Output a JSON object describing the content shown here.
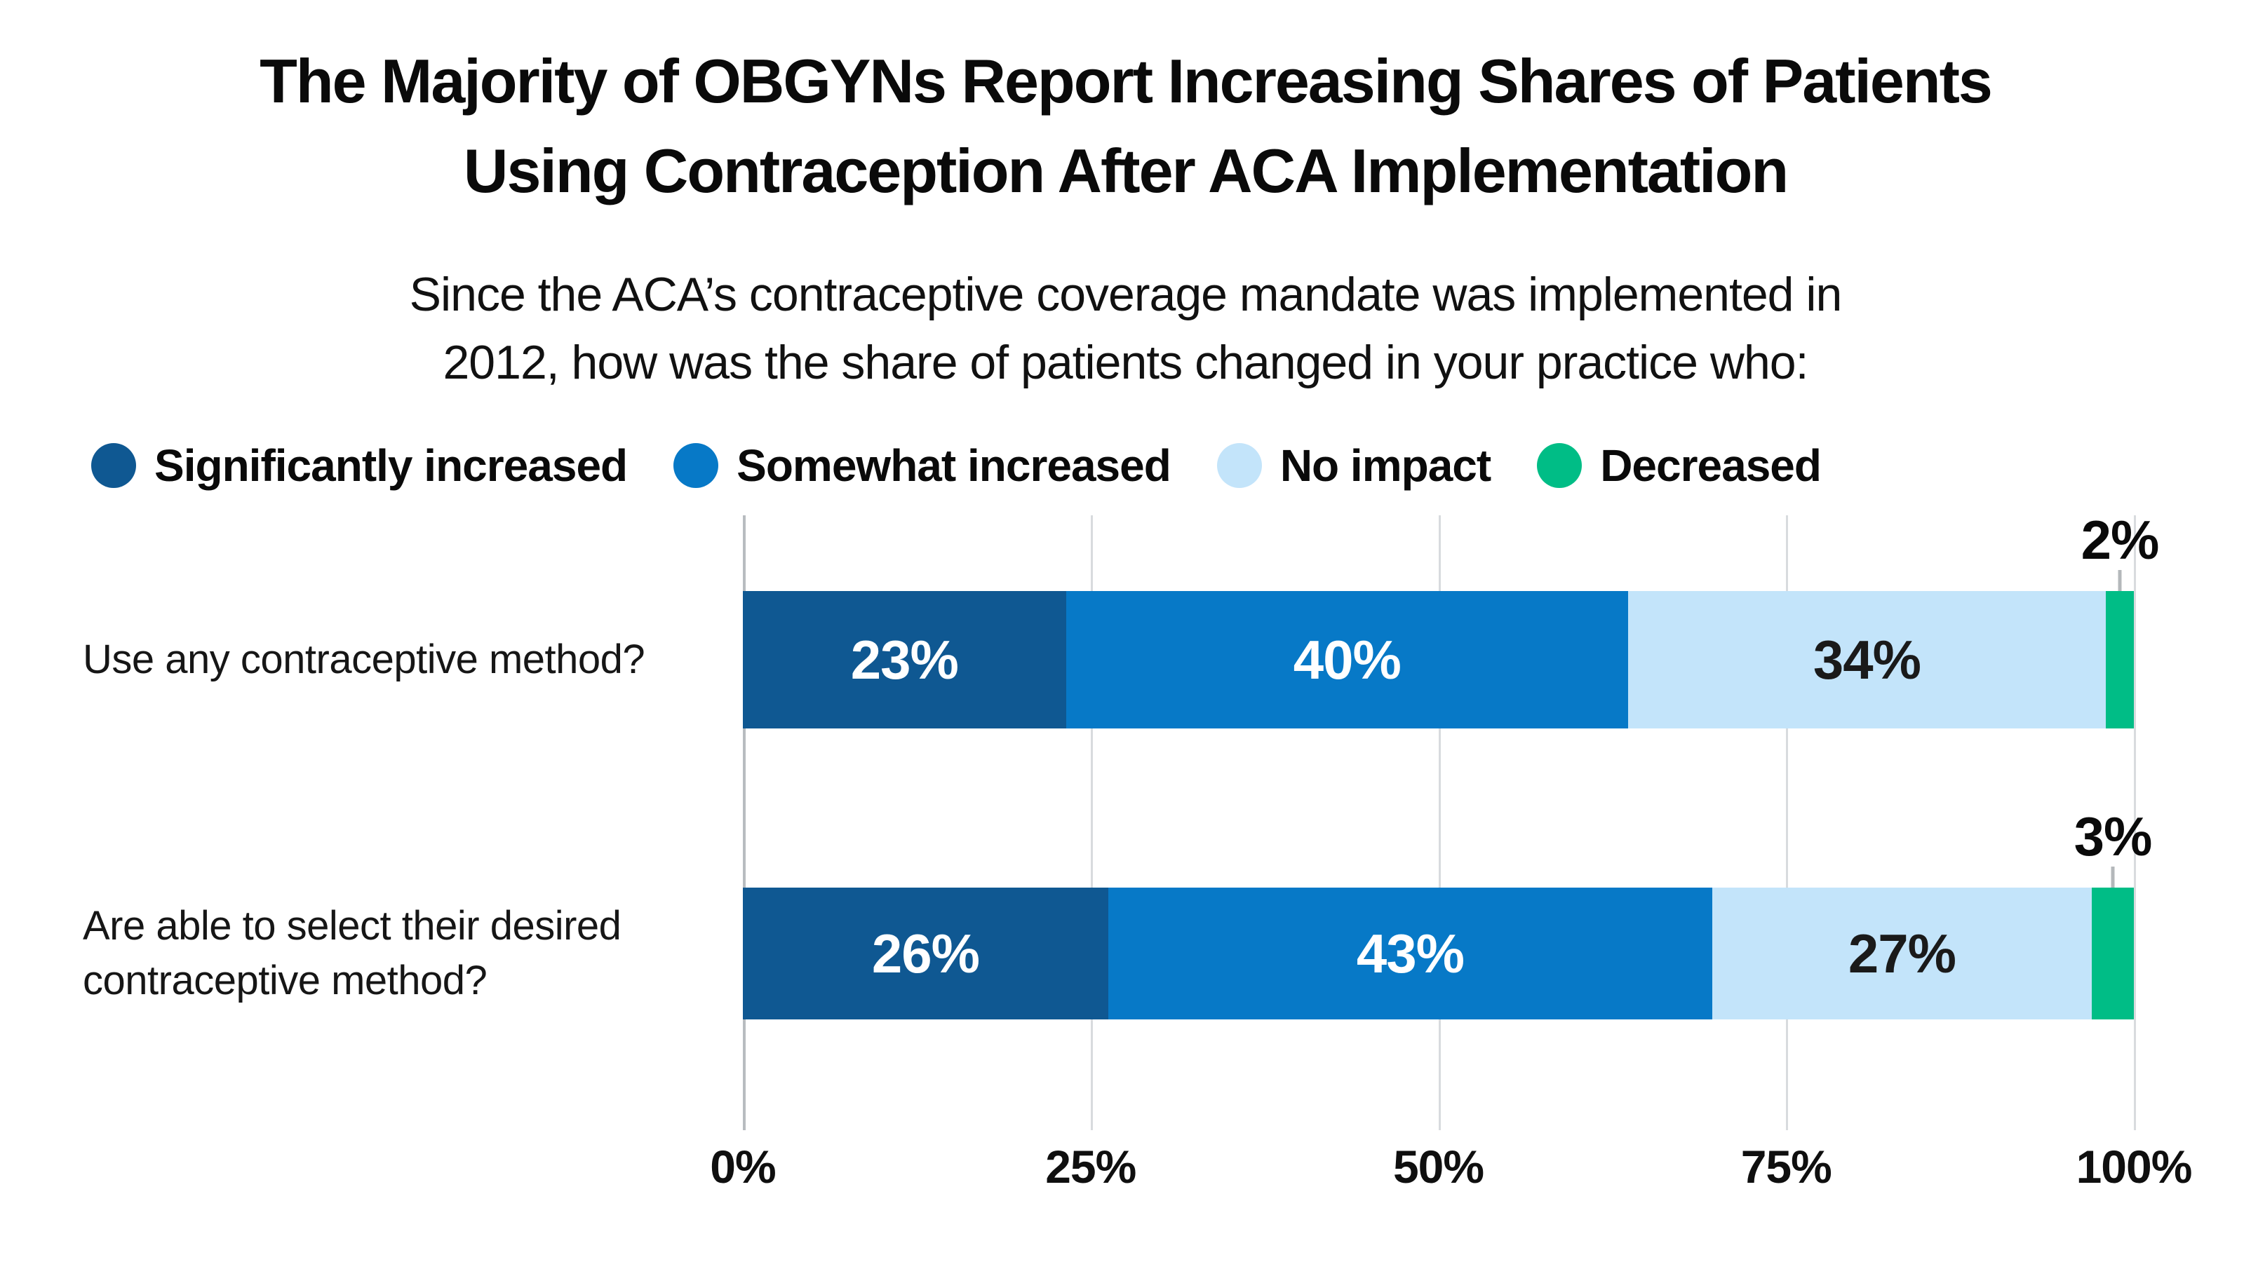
{
  "title": {
    "line1": "The Majority of OBGYNs Report Increasing Shares of Patients",
    "line2": "Using Contraception After ACA Implementation"
  },
  "subtitle": {
    "line1": "Since the ACA’s contraceptive coverage mandate was implemented in",
    "line2": "2012, how was the share of patients changed in your practice who:"
  },
  "colors": {
    "significantly_increased": "#0f5892",
    "somewhat_increased": "#0779c7",
    "no_impact": "#c3e4fa",
    "decreased": "#00bd86",
    "gridline": "#d8dbde",
    "zero_axis_line": "#b8bcc0",
    "leader_tick": "#b4b8bb",
    "text": "#0a0a0a"
  },
  "chart_data": {
    "type": "bar",
    "orientation": "horizontal",
    "stacked": true,
    "units": "%",
    "title": "The Majority of OBGYNs Report Increasing Shares of Patients Using Contraception After ACA Implementation",
    "subtitle": "Since the ACA’s contraceptive coverage mandate was implemented in 2012, how was the share of patients changed in your practice who:",
    "legend_position": "top",
    "categories": [
      "Use any contraceptive method?",
      "Are able to select their desired contraceptive method?"
    ],
    "category_label_lines": [
      [
        "Use any contraceptive method?"
      ],
      [
        "Are able to select their desired",
        "contraceptive method?"
      ]
    ],
    "series": [
      {
        "name": "Significantly increased",
        "values": [
          23,
          26
        ],
        "color": "#0f5892",
        "label_color": "#ffffff",
        "label_position": "inside"
      },
      {
        "name": "Somewhat increased",
        "values": [
          40,
          43
        ],
        "color": "#0779c7",
        "label_color": "#ffffff",
        "label_position": "inside"
      },
      {
        "name": "No impact",
        "values": [
          34,
          27
        ],
        "color": "#c3e4fa",
        "label_color": "#1a1a1a",
        "label_position": "inside"
      },
      {
        "name": "Decreased",
        "values": [
          2,
          3
        ],
        "color": "#00bd86",
        "label_color": "#0a0a0a",
        "label_position": "above"
      }
    ],
    "value_suffix": "%",
    "x_axis": {
      "range": [
        0,
        100
      ],
      "ticks": [
        0,
        25,
        50,
        75,
        100
      ],
      "tick_labels": [
        "0%",
        "25%",
        "50%",
        "75%",
        "100%"
      ],
      "gridlines": true
    }
  }
}
